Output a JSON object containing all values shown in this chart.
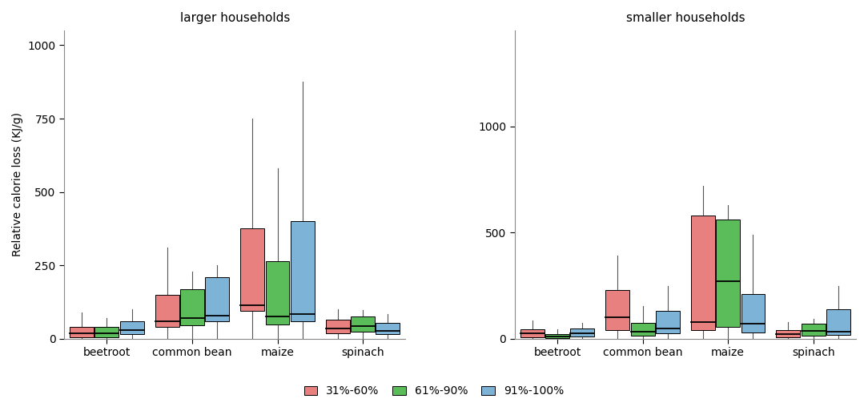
{
  "title_left": "larger households",
  "title_right": "smaller households",
  "ylabel": "Relative calorie loss (KJ/g)",
  "categories": [
    "beetroot",
    "common bean",
    "maize",
    "spinach"
  ],
  "legend_labels": [
    "31%-60%",
    "61%-90%",
    "91%-100%"
  ],
  "colors": [
    "#E88080",
    "#5BBD5A",
    "#7EB3D8"
  ],
  "left_boxes": {
    "beetroot": {
      "31-60": {
        "whislo": 0,
        "q1": 5,
        "med": 20,
        "q3": 40,
        "whishi": 90
      },
      "61-90": {
        "whislo": 0,
        "q1": 5,
        "med": 18,
        "q3": 40,
        "whishi": 70
      },
      "91-100": {
        "whislo": 0,
        "q1": 15,
        "med": 30,
        "q3": 60,
        "whishi": 100
      }
    },
    "common bean": {
      "31-60": {
        "whislo": 0,
        "q1": 40,
        "med": 60,
        "q3": 150,
        "whishi": 310
      },
      "61-90": {
        "whislo": 0,
        "q1": 45,
        "med": 70,
        "q3": 170,
        "whishi": 230
      },
      "91-100": {
        "whislo": 0,
        "q1": 60,
        "med": 80,
        "q3": 210,
        "whishi": 250
      }
    },
    "maize": {
      "31-60": {
        "whislo": 0,
        "q1": 95,
        "med": 115,
        "q3": 375,
        "whishi": 750
      },
      "61-90": {
        "whislo": 0,
        "q1": 50,
        "med": 75,
        "q3": 265,
        "whishi": 580
      },
      "91-100": {
        "whislo": 0,
        "q1": 60,
        "med": 85,
        "q3": 400,
        "whishi": 875
      }
    },
    "spinach": {
      "31-60": {
        "whislo": 0,
        "q1": 20,
        "med": 35,
        "q3": 65,
        "whishi": 100
      },
      "61-90": {
        "whislo": 0,
        "q1": 25,
        "med": 42,
        "q3": 75,
        "whishi": 98
      },
      "91-100": {
        "whislo": 0,
        "q1": 15,
        "med": 28,
        "q3": 55,
        "whishi": 85
      }
    }
  },
  "right_boxes": {
    "beetroot": {
      "31-60": {
        "whislo": 0,
        "q1": 8,
        "med": 25,
        "q3": 45,
        "whishi": 85
      },
      "61-90": {
        "whislo": 0,
        "q1": 3,
        "med": 10,
        "q3": 22,
        "whishi": 45
      },
      "91-100": {
        "whislo": 0,
        "q1": 10,
        "med": 25,
        "q3": 48,
        "whishi": 75
      }
    },
    "common bean": {
      "31-60": {
        "whislo": 0,
        "q1": 40,
        "med": 100,
        "q3": 230,
        "whishi": 390
      },
      "61-90": {
        "whislo": 0,
        "q1": 15,
        "med": 35,
        "q3": 75,
        "whishi": 155
      },
      "91-100": {
        "whislo": 0,
        "q1": 25,
        "med": 48,
        "q3": 130,
        "whishi": 250
      }
    },
    "maize": {
      "31-60": {
        "whislo": 0,
        "q1": 40,
        "med": 80,
        "q3": 580,
        "whishi": 720
      },
      "61-90": {
        "whislo": 0,
        "q1": 55,
        "med": 270,
        "q3": 560,
        "whishi": 630
      },
      "91-100": {
        "whislo": 0,
        "q1": 30,
        "med": 72,
        "q3": 210,
        "whishi": 490
      }
    },
    "spinach": {
      "31-60": {
        "whislo": 0,
        "q1": 8,
        "med": 22,
        "q3": 42,
        "whishi": 78
      },
      "61-90": {
        "whislo": 0,
        "q1": 15,
        "med": 38,
        "q3": 72,
        "whishi": 95
      },
      "91-100": {
        "whislo": 0,
        "q1": 18,
        "med": 35,
        "q3": 140,
        "whishi": 250
      }
    }
  },
  "left_ylim": [
    0,
    1050
  ],
  "right_ylim": [
    0,
    1450
  ],
  "left_yticks": [
    0,
    250,
    500,
    750,
    1000
  ],
  "right_yticks": [
    0,
    500,
    1000
  ],
  "box_width": 0.28,
  "background_color": "#FFFFFF",
  "whisker_color": "#555555",
  "spine_color": "#888888"
}
